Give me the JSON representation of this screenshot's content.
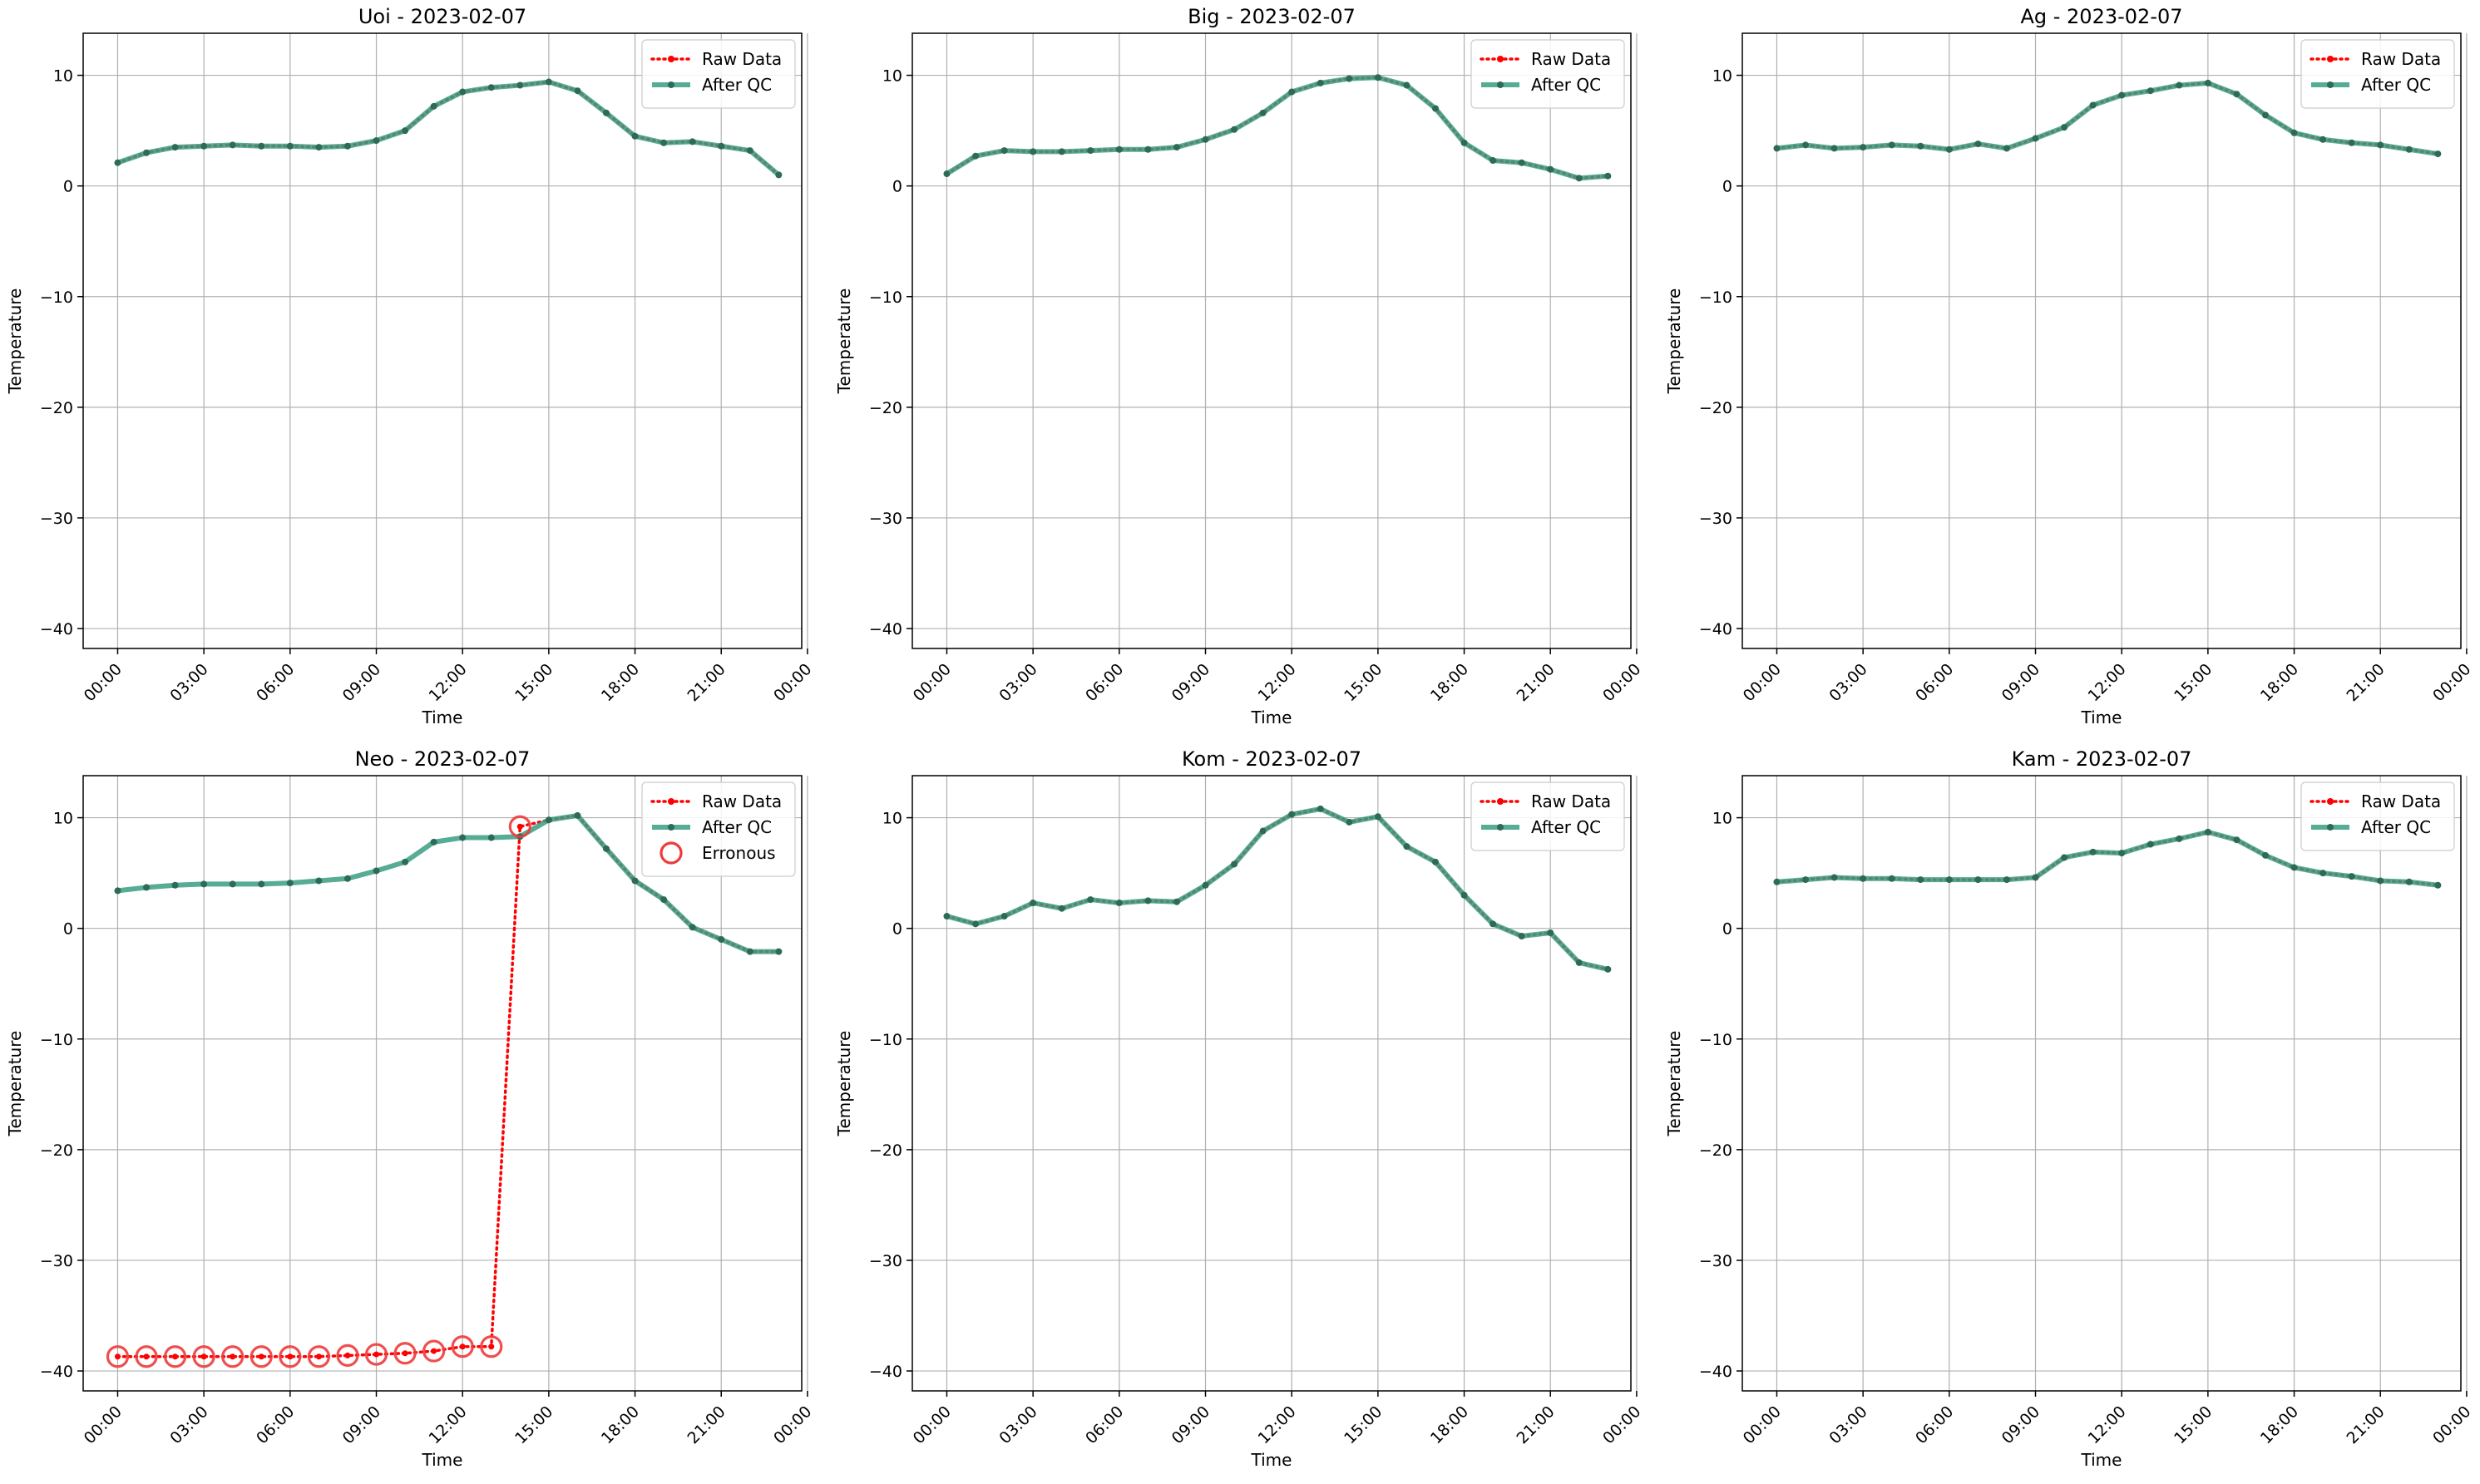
{
  "chart_data": [
    {
      "type": "line",
      "title": "Uoi - 2023-02-07",
      "xlabel": "Time",
      "ylabel": "Temperature",
      "x_ticks": [
        "00:00",
        "03:00",
        "06:00",
        "09:00",
        "12:00",
        "15:00",
        "18:00",
        "21:00",
        "00:00"
      ],
      "y_ticks": [
        10,
        0,
        -10,
        -20,
        -30,
        -40
      ],
      "ylim": [
        -41.8,
        13.8
      ],
      "grid": true,
      "legend": "top-right",
      "legend_entries": [
        "Raw Data",
        "After QC"
      ],
      "series": [
        {
          "name": "Raw Data",
          "values": [
            2.1,
            3.0,
            3.5,
            3.6,
            3.7,
            3.6,
            3.6,
            3.5,
            3.6,
            4.1,
            5.0,
            7.2,
            8.5,
            8.9,
            9.1,
            9.4,
            8.6,
            6.6,
            4.5,
            3.9,
            4.0,
            3.6,
            3.2,
            1.0
          ]
        },
        {
          "name": "After QC",
          "values": [
            2.1,
            3.0,
            3.5,
            3.6,
            3.7,
            3.6,
            3.6,
            3.5,
            3.6,
            4.1,
            5.0,
            7.2,
            8.5,
            8.9,
            9.1,
            9.4,
            8.6,
            6.6,
            4.5,
            3.9,
            4.0,
            3.6,
            3.2,
            1.0
          ]
        }
      ],
      "erroneous_hours": []
    },
    {
      "type": "line",
      "title": "Big - 2023-02-07",
      "xlabel": "Time",
      "ylabel": "Temperature",
      "x_ticks": [
        "00:00",
        "03:00",
        "06:00",
        "09:00",
        "12:00",
        "15:00",
        "18:00",
        "21:00",
        "00:00"
      ],
      "y_ticks": [
        10,
        0,
        -10,
        -20,
        -30,
        -40
      ],
      "ylim": [
        -41.8,
        13.8
      ],
      "grid": true,
      "legend": "top-right",
      "legend_entries": [
        "Raw Data",
        "After QC"
      ],
      "series": [
        {
          "name": "Raw Data",
          "values": [
            1.1,
            2.7,
            3.2,
            3.1,
            3.1,
            3.2,
            3.3,
            3.3,
            3.5,
            4.2,
            5.1,
            6.6,
            8.5,
            9.3,
            9.7,
            9.8,
            9.1,
            7.0,
            3.9,
            2.3,
            2.1,
            1.5,
            0.7,
            0.9
          ]
        },
        {
          "name": "After QC",
          "values": [
            1.1,
            2.7,
            3.2,
            3.1,
            3.1,
            3.2,
            3.3,
            3.3,
            3.5,
            4.2,
            5.1,
            6.6,
            8.5,
            9.3,
            9.7,
            9.8,
            9.1,
            7.0,
            3.9,
            2.3,
            2.1,
            1.5,
            0.7,
            0.9
          ]
        }
      ],
      "erroneous_hours": []
    },
    {
      "type": "line",
      "title": "Ag - 2023-02-07",
      "xlabel": "Time",
      "ylabel": "Temperature",
      "x_ticks": [
        "00:00",
        "03:00",
        "06:00",
        "09:00",
        "12:00",
        "15:00",
        "18:00",
        "21:00",
        "00:00"
      ],
      "y_ticks": [
        10,
        0,
        -10,
        -20,
        -30,
        -40
      ],
      "ylim": [
        -41.8,
        13.8
      ],
      "grid": true,
      "legend": "top-right",
      "legend_entries": [
        "Raw Data",
        "After QC"
      ],
      "series": [
        {
          "name": "Raw Data",
          "values": [
            3.4,
            3.7,
            3.4,
            3.5,
            3.7,
            3.6,
            3.3,
            3.8,
            3.4,
            4.3,
            5.3,
            7.3,
            8.2,
            8.6,
            9.1,
            9.3,
            8.3,
            6.4,
            4.8,
            4.2,
            3.9,
            3.7,
            3.3,
            2.9
          ]
        },
        {
          "name": "After QC",
          "values": [
            3.4,
            3.7,
            3.4,
            3.5,
            3.7,
            3.6,
            3.3,
            3.8,
            3.4,
            4.3,
            5.3,
            7.3,
            8.2,
            8.6,
            9.1,
            9.3,
            8.3,
            6.4,
            4.8,
            4.2,
            3.9,
            3.7,
            3.3,
            2.9
          ]
        }
      ],
      "erroneous_hours": []
    },
    {
      "type": "line",
      "title": "Neo - 2023-02-07",
      "xlabel": "Time",
      "ylabel": "Temperature",
      "x_ticks": [
        "00:00",
        "03:00",
        "06:00",
        "09:00",
        "12:00",
        "15:00",
        "18:00",
        "21:00",
        "00:00"
      ],
      "y_ticks": [
        10,
        0,
        -10,
        -20,
        -30,
        -40
      ],
      "ylim": [
        -41.8,
        13.8
      ],
      "grid": true,
      "legend": "top-right",
      "legend_entries": [
        "Raw Data",
        "After QC",
        "Erronous"
      ],
      "series": [
        {
          "name": "Raw Data",
          "values": [
            -38.7,
            -38.7,
            -38.7,
            -38.7,
            -38.7,
            -38.7,
            -38.7,
            -38.7,
            -38.6,
            -38.5,
            -38.4,
            -38.2,
            -37.8,
            -37.8,
            9.2,
            9.8,
            10.2,
            7.2,
            4.3,
            2.6,
            0.1,
            -1.0,
            -2.1,
            -2.1
          ]
        },
        {
          "name": "After QC",
          "values": [
            3.4,
            3.7,
            3.9,
            4.0,
            4.0,
            4.0,
            4.1,
            4.3,
            4.5,
            5.2,
            6.0,
            7.8,
            8.2,
            8.2,
            8.3,
            9.8,
            10.2,
            7.2,
            4.3,
            2.6,
            0.1,
            -1.0,
            -2.1,
            -2.1
          ]
        }
      ],
      "erroneous_hours": [
        0,
        1,
        2,
        3,
        4,
        5,
        6,
        7,
        8,
        9,
        10,
        11,
        12,
        13,
        14
      ]
    },
    {
      "type": "line",
      "title": "Kom - 2023-02-07",
      "xlabel": "Time",
      "ylabel": "Temperature",
      "x_ticks": [
        "00:00",
        "03:00",
        "06:00",
        "09:00",
        "12:00",
        "15:00",
        "18:00",
        "21:00",
        "00:00"
      ],
      "y_ticks": [
        10,
        0,
        -10,
        -20,
        -30,
        -40
      ],
      "ylim": [
        -41.8,
        13.8
      ],
      "grid": true,
      "legend": "top-right",
      "legend_entries": [
        "Raw Data",
        "After QC"
      ],
      "series": [
        {
          "name": "Raw Data",
          "values": [
            1.1,
            0.4,
            1.1,
            2.3,
            1.8,
            2.6,
            2.3,
            2.5,
            2.4,
            3.9,
            5.8,
            8.8,
            10.3,
            10.8,
            9.6,
            10.1,
            7.4,
            6.0,
            3.0,
            0.4,
            -0.7,
            -0.4,
            -3.1,
            -3.7
          ]
        },
        {
          "name": "After QC",
          "values": [
            1.1,
            0.4,
            1.1,
            2.3,
            1.8,
            2.6,
            2.3,
            2.5,
            2.4,
            3.9,
            5.8,
            8.8,
            10.3,
            10.8,
            9.6,
            10.1,
            7.4,
            6.0,
            3.0,
            0.4,
            -0.7,
            -0.4,
            -3.1,
            -3.7
          ]
        }
      ],
      "erroneous_hours": []
    },
    {
      "type": "line",
      "title": "Kam - 2023-02-07",
      "xlabel": "Time",
      "ylabel": "Temperature",
      "x_ticks": [
        "00:00",
        "03:00",
        "06:00",
        "09:00",
        "12:00",
        "15:00",
        "18:00",
        "21:00",
        "00:00"
      ],
      "y_ticks": [
        10,
        0,
        -10,
        -20,
        -30,
        -40
      ],
      "ylim": [
        -41.8,
        13.8
      ],
      "grid": true,
      "legend": "top-right",
      "legend_entries": [
        "Raw Data",
        "After QC"
      ],
      "series": [
        {
          "name": "Raw Data",
          "values": [
            4.2,
            4.4,
            4.6,
            4.5,
            4.5,
            4.4,
            4.4,
            4.4,
            4.4,
            4.6,
            6.4,
            6.9,
            6.8,
            7.6,
            8.1,
            8.7,
            8.0,
            6.6,
            5.5,
            5.0,
            4.7,
            4.3,
            4.2,
            3.9
          ]
        },
        {
          "name": "After QC",
          "values": [
            4.2,
            4.4,
            4.6,
            4.5,
            4.5,
            4.4,
            4.4,
            4.4,
            4.4,
            4.6,
            6.4,
            6.9,
            6.8,
            7.6,
            8.1,
            8.7,
            8.0,
            6.6,
            5.5,
            5.0,
            4.7,
            4.3,
            4.2,
            3.9
          ]
        }
      ],
      "erroneous_hours": []
    }
  ],
  "colors": {
    "raw": "#ff0000",
    "qc_line": "#3a9e82",
    "qc_marker": "#2e6b57",
    "erroneous": "#ee3b3b",
    "grid": "#b0b0b0",
    "axes": "#000000"
  }
}
